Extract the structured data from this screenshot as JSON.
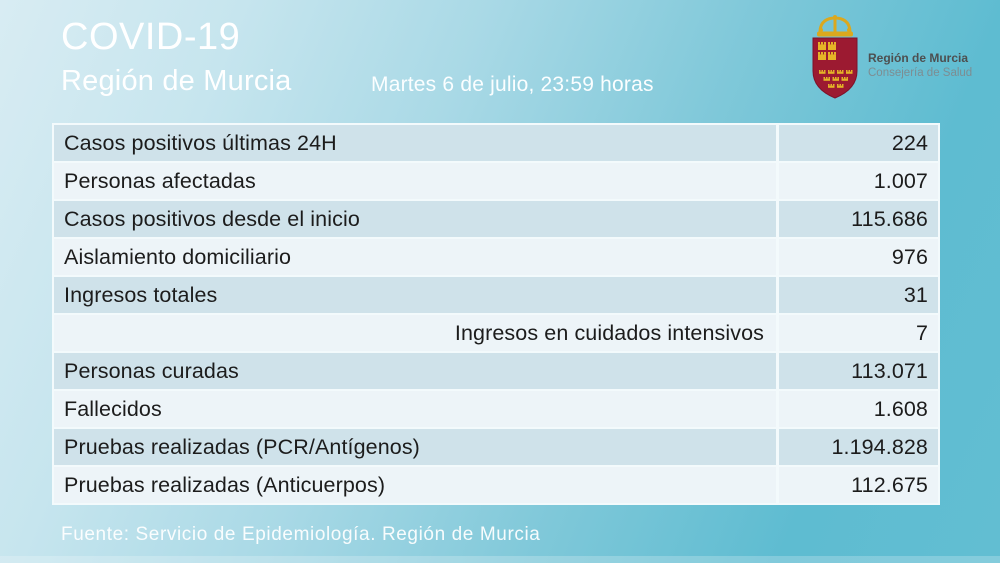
{
  "header": {
    "title": "COVID-19",
    "subtitle": "Región de Murcia",
    "date": "Martes 6 de julio, 23:59 horas"
  },
  "logo": {
    "org": "Región de Murcia",
    "dept": "Consejería de Salud"
  },
  "table": {
    "rows": [
      {
        "label": "Casos positivos últimas 24H",
        "value": "224",
        "align": "left"
      },
      {
        "label": "Personas afectadas",
        "value": "1.007",
        "align": "left"
      },
      {
        "label": "Casos positivos desde el inicio",
        "value": "115.686",
        "align": "left"
      },
      {
        "label": "Aislamiento domiciliario",
        "value": "976",
        "align": "left"
      },
      {
        "label": "Ingresos totales",
        "value": "31",
        "align": "left"
      },
      {
        "label": "Ingresos en cuidados intensivos",
        "value": "7",
        "align": "right"
      },
      {
        "label": "Personas curadas",
        "value": "113.071",
        "align": "left"
      },
      {
        "label": "Fallecidos",
        "value": "1.608",
        "align": "left"
      },
      {
        "label": "Pruebas realizadas (PCR/Antígenos)",
        "value": "1.194.828",
        "align": "left"
      },
      {
        "label": "Pruebas realizadas (Anticuerpos)",
        "value": "112.675",
        "align": "left"
      }
    ]
  },
  "footer": {
    "source": "Fuente: Servicio de Epidemiología. Región de Murcia"
  },
  "colors": {
    "background_teal": "#5ebcd1",
    "background_light": "#d8ecf3",
    "row_blue": "#cfe2ea",
    "row_light": "#edf4f8",
    "table_border": "#f3fafc",
    "text_dark": "#1c1c1c",
    "title_white": "#ffffff",
    "shield_red": "#9c1a31",
    "crown_gold": "#dba81e",
    "logo_org_gray": "#4d4f50",
    "logo_dept_gray": "#7d8d92"
  },
  "chart_data": {
    "type": "table",
    "title": "COVID-19 Región de Murcia",
    "subtitle": "Martes 6 de julio, 23:59 horas",
    "categories": [
      "Casos positivos últimas 24H",
      "Personas afectadas",
      "Casos positivos desde el inicio",
      "Aislamiento domiciliario",
      "Ingresos totales",
      "Ingresos en cuidados intensivos",
      "Personas curadas",
      "Fallecidos",
      "Pruebas realizadas (PCR/Antígenos)",
      "Pruebas realizadas (Anticuerpos)"
    ],
    "values": [
      224,
      1007,
      115686,
      976,
      31,
      7,
      113071,
      1608,
      1194828,
      112675
    ],
    "source": "Servicio de Epidemiología. Región de Murcia"
  }
}
